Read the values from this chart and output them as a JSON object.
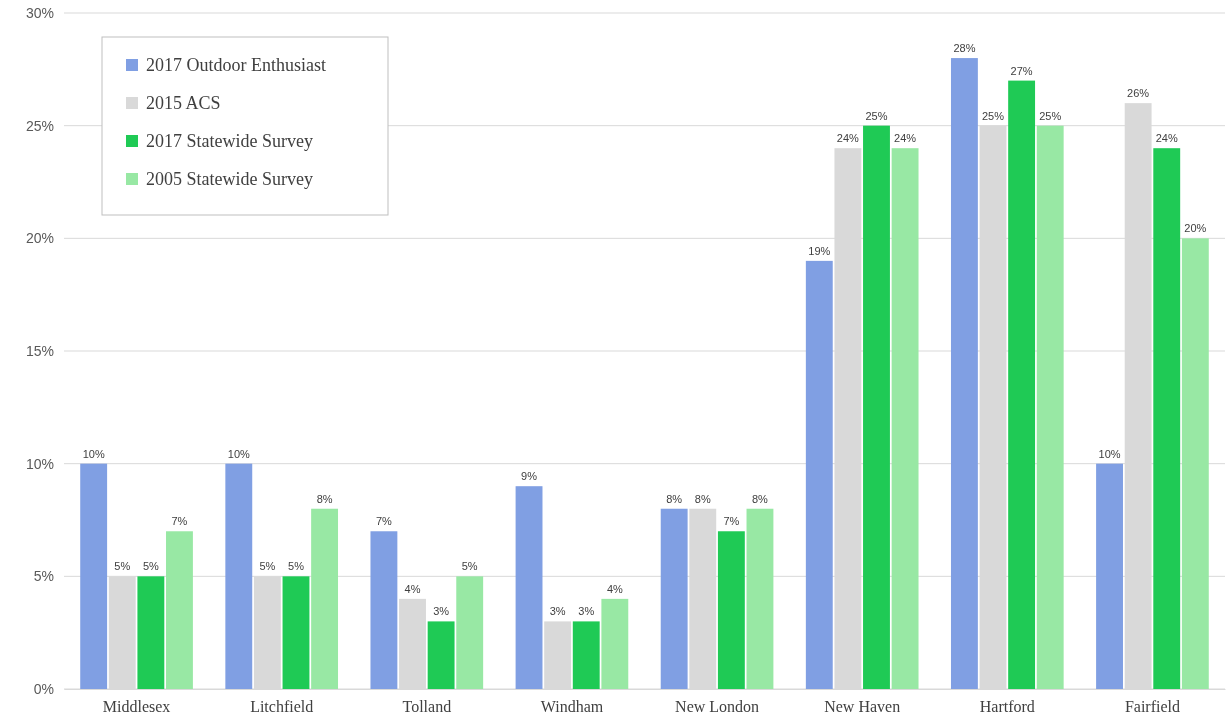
{
  "chart_data": {
    "type": "bar",
    "categories": [
      "Middlesex",
      "Litchfield",
      "Tolland",
      "Windham",
      "New London",
      "New Haven",
      "Hartford",
      "Fairfield"
    ],
    "series": [
      {
        "name": "2017 Outdoor Enthusiast",
        "color": "#809fe3",
        "values": [
          10,
          10,
          7,
          9,
          8,
          19,
          28,
          10
        ],
        "value_labels": [
          "10%",
          "10%",
          "7%",
          "9%",
          "8%",
          "19%",
          "28%",
          "10%"
        ]
      },
      {
        "name": "2015 ACS",
        "color": "#d9d9d9",
        "values": [
          5,
          5,
          4,
          3,
          8,
          24,
          25,
          26
        ],
        "value_labels": [
          "5%",
          "5%",
          "4%",
          "3%",
          "8%",
          "24%",
          "25%",
          "26%"
        ]
      },
      {
        "name": "2017 Statewide Survey",
        "color": "#1fca55",
        "values": [
          5,
          5,
          3,
          3,
          7,
          25,
          27,
          24
        ],
        "value_labels": [
          "5%",
          "5%",
          "3%",
          "3%",
          "7%",
          "25%",
          "27%",
          "24%"
        ]
      },
      {
        "name": "2005 Statewide Survey",
        "color": "#98e8a4",
        "values": [
          7,
          8,
          5,
          4,
          8,
          24,
          25,
          20
        ],
        "value_labels": [
          "7%",
          "8%",
          "5%",
          "4%",
          "8%",
          "24%",
          "25%",
          "20%"
        ]
      }
    ],
    "ylim": [
      0,
      30
    ],
    "yticks": [
      {
        "value": 0,
        "label": "0%"
      },
      {
        "value": 5,
        "label": "5%"
      },
      {
        "value": 10,
        "label": "10%"
      },
      {
        "value": 15,
        "label": "15%"
      },
      {
        "value": 20,
        "label": "20%"
      },
      {
        "value": 25,
        "label": "25%"
      },
      {
        "value": 30,
        "label": "30%"
      }
    ],
    "grid": "y",
    "legend": "top left"
  }
}
